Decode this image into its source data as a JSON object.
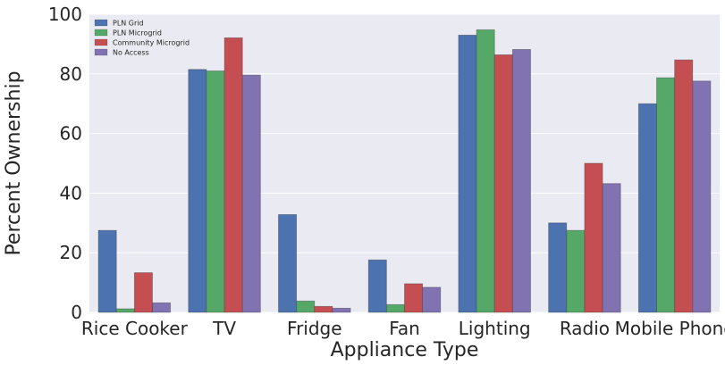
{
  "chart_data": {
    "type": "bar",
    "xlabel": "Appliance Type",
    "ylabel": "Percent Ownership",
    "ylim": [
      0,
      100
    ],
    "yticks": [
      0,
      20,
      40,
      60,
      80,
      100
    ],
    "grid": true,
    "legend_position": "top-left",
    "categories": [
      "Rice Cooker",
      "TV",
      "Fridge",
      "Fan",
      "Lighting",
      "Radio",
      "Mobile Phone"
    ],
    "series": [
      {
        "name": "PLN Grid",
        "color": "#4c72b0",
        "values": [
          27.5,
          81.5,
          32.8,
          17.6,
          93.0,
          30.0,
          70.0
        ]
      },
      {
        "name": "PLN Microgrid",
        "color": "#55a868",
        "values": [
          1.2,
          81.0,
          3.8,
          2.6,
          94.8,
          27.5,
          78.7
        ]
      },
      {
        "name": "Community Microgrid",
        "color": "#c44e52",
        "values": [
          13.3,
          92.1,
          2.0,
          9.6,
          86.4,
          50.0,
          84.7
        ]
      },
      {
        "name": "No Access",
        "color": "#8172b2",
        "values": [
          3.2,
          79.6,
          1.4,
          8.4,
          88.2,
          43.2,
          77.6
        ]
      }
    ],
    "style": {
      "plot_bg": "#eaeaf2",
      "grid_color": "#ffffff"
    }
  }
}
